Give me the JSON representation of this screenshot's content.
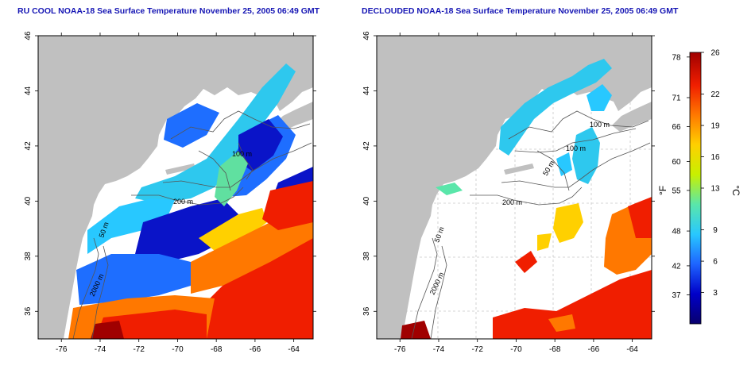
{
  "panels": [
    {
      "title": "RU COOL NOAA-18 Sea Surface Temperature November 25, 2005 06:49 GMT"
    },
    {
      "title": "DECLOUDED NOAA-18 Sea Surface Temperature November 25, 2005 06:49 GMT"
    }
  ],
  "axes": {
    "lon_ticks": [
      "-76",
      "-74",
      "-72",
      "-70",
      "-68",
      "-66",
      "-64"
    ],
    "lat_ticks": [
      "36",
      "38",
      "40",
      "42",
      "44",
      "46"
    ],
    "lon_range": [
      -77.2,
      -63.0
    ],
    "lat_range": [
      35.0,
      46.0
    ]
  },
  "isobath_labels_left": [
    "200 m",
    "100 m",
    "50 m",
    "2000 m"
  ],
  "isobath_labels_right": [
    "100 m",
    "100 m",
    "50 m",
    "200 m",
    "50 m",
    "2000 m"
  ],
  "colorbar": {
    "fahrenheit_label": "°F",
    "celsius_label": "°C",
    "fahrenheit_ticks": [
      "78",
      "71",
      "66",
      "60",
      "55",
      "48",
      "42",
      "37"
    ],
    "celsius_ticks": [
      "26",
      "22",
      "19",
      "16",
      "13",
      "9",
      "6",
      "3"
    ],
    "celsius_range": [
      0,
      26
    ],
    "colors": [
      "#08006e",
      "#0000c8",
      "#1e64ff",
      "#28c8ff",
      "#5ae6aa",
      "#c8f000",
      "#ffd000",
      "#ff7800",
      "#f01e00",
      "#a00000"
    ]
  },
  "colors": {
    "land": "#c0c0c0",
    "no_data": "#ffffff",
    "title": "#1515b4",
    "contour": "#555555",
    "grid": "#c8c8c8"
  }
}
